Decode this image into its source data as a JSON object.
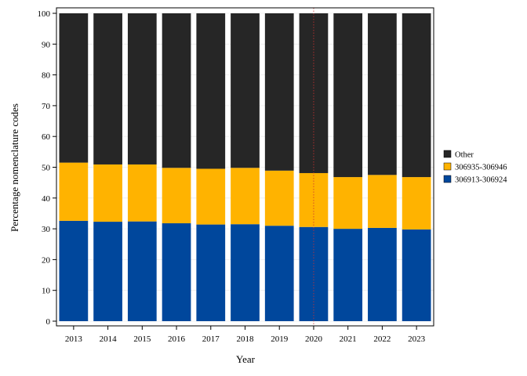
{
  "chart_data": {
    "type": "bar",
    "stacked": true,
    "categories": [
      "2013",
      "2014",
      "2015",
      "2016",
      "2017",
      "2018",
      "2019",
      "2020",
      "2021",
      "2022",
      "2023"
    ],
    "series": [
      {
        "name": "306913-306924",
        "color": "#00479C",
        "values": [
          32.6,
          32.3,
          32.4,
          31.8,
          31.4,
          31.5,
          31.0,
          30.6,
          30.0,
          30.3,
          29.8
        ]
      },
      {
        "name": "306935-306946",
        "color": "#FFB300",
        "values": [
          18.9,
          18.6,
          18.5,
          18.0,
          18.1,
          18.3,
          17.9,
          17.5,
          16.8,
          17.2,
          17.0
        ]
      },
      {
        "name": "Other",
        "color": "#262626",
        "values": [
          48.5,
          49.1,
          49.1,
          50.2,
          50.5,
          50.2,
          51.1,
          51.9,
          53.2,
          52.5,
          53.2
        ]
      }
    ],
    "legend_order": [
      "Other",
      "306935-306946",
      "306913-306924"
    ],
    "title": "",
    "xlabel": "Year",
    "ylabel": "Percentage nomenclature codes",
    "ylim": [
      0,
      100
    ],
    "yticks": [
      0,
      10,
      20,
      30,
      40,
      50,
      60,
      70,
      80,
      90,
      100
    ],
    "grid": true,
    "legend_position": "right",
    "reference_line": {
      "x": "2020",
      "color": "#cc3333",
      "style": "dotted"
    }
  }
}
